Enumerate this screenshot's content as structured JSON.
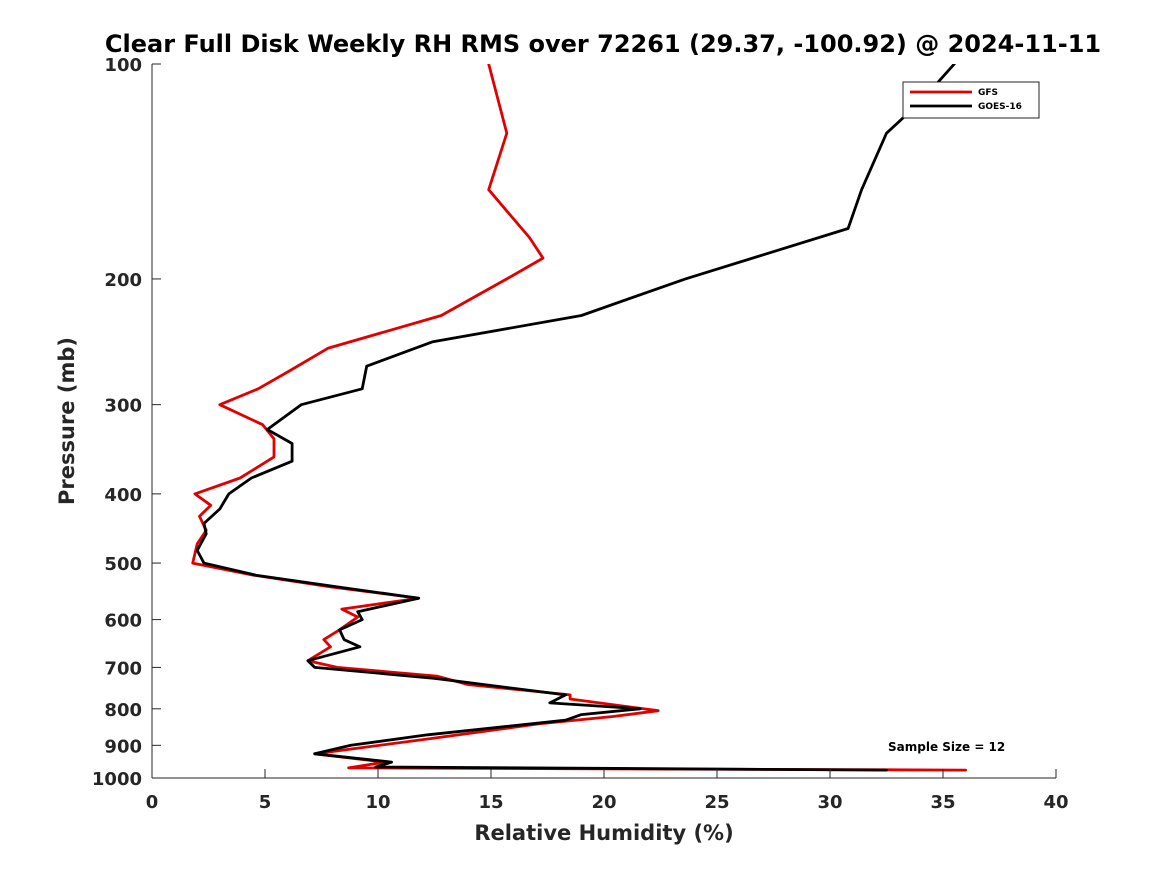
{
  "chart_data": {
    "type": "line",
    "title": "Clear Full Disk Weekly RH RMS over 72261 (29.37, -100.92) @ 2024-11-11",
    "xlabel": "Relative Humidity (%)",
    "ylabel": "Pressure (mb)",
    "xlim": [
      0,
      40
    ],
    "ylim": [
      100,
      1000
    ],
    "y_scale": "log",
    "y_reversed": true,
    "x_ticks": [
      0,
      5,
      10,
      15,
      20,
      25,
      30,
      35,
      40
    ],
    "y_ticks": [
      100,
      200,
      300,
      400,
      500,
      600,
      700,
      800,
      900,
      1000
    ],
    "grid": false,
    "legend_position": "top-right",
    "annotation": "Sample Size = 12",
    "series": [
      {
        "name": "GFS",
        "color": "#e00000",
        "points": [
          [
            14.9,
            100
          ],
          [
            15.7,
            125
          ],
          [
            14.9,
            150
          ],
          [
            16.7,
            175
          ],
          [
            17.3,
            187
          ],
          [
            15.7,
            200
          ],
          [
            12.8,
            225
          ],
          [
            7.8,
            250
          ],
          [
            6.0,
            270
          ],
          [
            4.7,
            285
          ],
          [
            3.0,
            300
          ],
          [
            4.9,
            320
          ],
          [
            5.4,
            335
          ],
          [
            5.4,
            355
          ],
          [
            3.9,
            380
          ],
          [
            1.9,
            400
          ],
          [
            2.6,
            415
          ],
          [
            2.1,
            430
          ],
          [
            2.4,
            450
          ],
          [
            2.0,
            470
          ],
          [
            1.8,
            500
          ],
          [
            4.5,
            520
          ],
          [
            7.9,
            540
          ],
          [
            11.8,
            560
          ],
          [
            8.4,
            580
          ],
          [
            9.1,
            595
          ],
          [
            8.3,
            620
          ],
          [
            7.6,
            640
          ],
          [
            7.9,
            655
          ],
          [
            6.9,
            685
          ],
          [
            8.2,
            700
          ],
          [
            12.6,
            720
          ],
          [
            14.0,
            740
          ],
          [
            18.5,
            765
          ],
          [
            18.5,
            775
          ],
          [
            22.4,
            805
          ],
          [
            20.4,
            820
          ],
          [
            17.1,
            840
          ],
          [
            12.4,
            880
          ],
          [
            7.2,
            925
          ],
          [
            10.3,
            950
          ],
          [
            8.7,
            968
          ],
          [
            36.0,
            975
          ]
        ]
      },
      {
        "name": "GOES-16",
        "color": "#000000",
        "points": [
          [
            35.5,
            100
          ],
          [
            34.0,
            113
          ],
          [
            32.5,
            125
          ],
          [
            31.4,
            150
          ],
          [
            30.8,
            170
          ],
          [
            23.6,
            200
          ],
          [
            19.0,
            225
          ],
          [
            12.4,
            245
          ],
          [
            9.5,
            265
          ],
          [
            9.3,
            285
          ],
          [
            6.6,
            300
          ],
          [
            5.1,
            325
          ],
          [
            6.2,
            340
          ],
          [
            6.2,
            360
          ],
          [
            4.4,
            380
          ],
          [
            3.4,
            400
          ],
          [
            3.0,
            420
          ],
          [
            2.3,
            440
          ],
          [
            2.4,
            455
          ],
          [
            2.0,
            480
          ],
          [
            2.3,
            500
          ],
          [
            4.6,
            520
          ],
          [
            8.2,
            540
          ],
          [
            11.8,
            560
          ],
          [
            9.1,
            585
          ],
          [
            9.3,
            600
          ],
          [
            8.3,
            620
          ],
          [
            8.5,
            640
          ],
          [
            9.2,
            655
          ],
          [
            6.9,
            685
          ],
          [
            7.2,
            700
          ],
          [
            12.5,
            725
          ],
          [
            18.3,
            765
          ],
          [
            17.6,
            785
          ],
          [
            21.6,
            800
          ],
          [
            19.0,
            815
          ],
          [
            18.3,
            830
          ],
          [
            12.2,
            870
          ],
          [
            8.8,
            900
          ],
          [
            7.2,
            925
          ],
          [
            10.6,
            950
          ],
          [
            9.9,
            965
          ],
          [
            32.5,
            975
          ]
        ]
      }
    ]
  }
}
